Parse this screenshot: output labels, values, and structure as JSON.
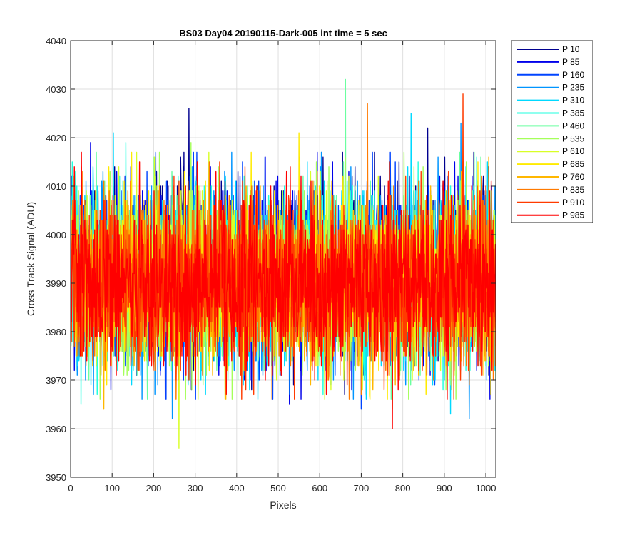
{
  "chart_data": {
    "type": "line",
    "title": "BS03 Day04 20190115-Dark-005 int time = 5 sec",
    "xlabel": "Pixels",
    "ylabel": "Cross Track Signal (ADU)",
    "xlim": [
      0,
      1024
    ],
    "ylim": [
      3950,
      4040
    ],
    "xticks": [
      0,
      100,
      200,
      300,
      400,
      500,
      600,
      700,
      800,
      900,
      1000
    ],
    "yticks": [
      3950,
      3960,
      3970,
      3980,
      3990,
      4000,
      4010,
      4020,
      4030,
      4040
    ],
    "grid": true,
    "legend_position": "outside-top-right",
    "x": "pixel index 1..1024",
    "series": [
      {
        "name": "P 10",
        "color": "#00008f",
        "center": 3993,
        "spread": 9,
        "peaks": [
          [
            285,
            4026
          ],
          [
            22,
            3975
          ],
          [
            860,
            4022
          ]
        ]
      },
      {
        "name": "P 85",
        "color": "#0000ea",
        "center": 3992,
        "spread": 9,
        "peaks": [
          [
            48,
            4019
          ],
          [
            527,
            3965
          ],
          [
            1010,
            3966
          ]
        ]
      },
      {
        "name": "P 160",
        "color": "#0044ff",
        "center": 3992,
        "spread": 8.5,
        "peaks": [
          [
            700,
            3964
          ],
          [
            230,
            3966
          ]
        ]
      },
      {
        "name": "P 235",
        "color": "#0095ff",
        "center": 3991,
        "spread": 8.5,
        "peaks": [
          [
            940,
            4023
          ],
          [
            960,
            3962
          ],
          [
            245,
            3962
          ]
        ]
      },
      {
        "name": "P 310",
        "color": "#00d9ff",
        "center": 3991,
        "spread": 8.5,
        "peaks": [
          [
            103,
            4021
          ],
          [
            820,
            4025
          ],
          [
            915,
            3963
          ]
        ]
      },
      {
        "name": "P 385",
        "color": "#1fffdf",
        "center": 3991,
        "spread": 8.5,
        "peaks": [
          [
            133,
            4019
          ],
          [
            25,
            3965
          ]
        ]
      },
      {
        "name": "P 460",
        "color": "#6affa0",
        "center": 3991,
        "spread": 8.5,
        "peaks": [
          [
            662,
            4032
          ]
        ]
      },
      {
        "name": "P 535",
        "color": "#a5ff5a",
        "center": 3991,
        "spread": 8.5,
        "peaks": [
          [
            290,
            4019
          ],
          [
            775,
            3964
          ]
        ]
      },
      {
        "name": "P 610",
        "color": "#d9ff26",
        "center": 3991,
        "spread": 8.5,
        "peaks": [
          [
            261,
            3956
          ]
        ]
      },
      {
        "name": "P 685",
        "color": "#ffeb00",
        "center": 3991,
        "spread": 8.5,
        "peaks": [
          [
            550,
            4021
          ],
          [
            720,
            3967
          ]
        ]
      },
      {
        "name": "P 760",
        "color": "#ffb700",
        "center": 3990,
        "spread": 8.5,
        "peaks": [
          [
            80,
            3964
          ]
        ]
      },
      {
        "name": "P 835",
        "color": "#ff7a00",
        "center": 3990,
        "spread": 8.5,
        "peaks": [
          [
            715,
            4027
          ],
          [
            960,
            3969
          ]
        ]
      },
      {
        "name": "P 910",
        "color": "#ff3b00",
        "center": 3990,
        "spread": 8.5,
        "peaks": [
          [
            945,
            4029
          ]
        ]
      },
      {
        "name": "P 985",
        "color": "#ff0000",
        "center": 3990,
        "spread": 8.5,
        "peaks": [
          [
            775,
            3960
          ],
          [
            305,
            4015
          ]
        ]
      }
    ]
  }
}
